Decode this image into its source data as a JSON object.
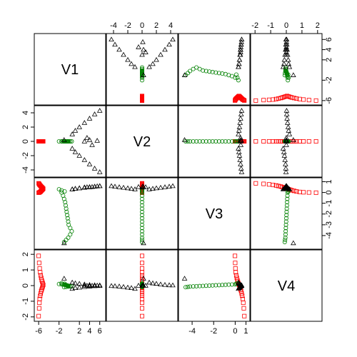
{
  "chart_data": {
    "type": "scatter",
    "subtype": "pairs-matrix",
    "variables": [
      "V1",
      "V2",
      "V3",
      "V4"
    ],
    "ranges": {
      "V1": [
        -6.3,
        6.6
      ],
      "V2": [
        -4.6,
        4.6
      ],
      "V3": [
        -5.0,
        1.1
      ],
      "V4": [
        -2.1,
        2.1
      ]
    },
    "axis_ticks": {
      "V1": [
        -6,
        -2,
        2,
        4,
        6
      ],
      "V2": [
        -4,
        -2,
        0,
        2,
        4
      ],
      "V3": [
        -4,
        -2,
        0,
        1
      ],
      "V4": [
        -2,
        -1,
        0,
        1,
        2
      ]
    },
    "axis_tick_labels": {
      "V1": [
        "-6",
        "-2",
        "2",
        "4",
        "6"
      ],
      "V2": [
        "-4",
        "-2",
        "0",
        "2",
        "4"
      ],
      "V3": [
        "-4",
        "-2",
        "0",
        "1"
      ],
      "V4": [
        "-2",
        "-1",
        "0",
        "1",
        "2"
      ]
    },
    "right_axis_ticks": {
      "V1": [
        -6,
        -2,
        2,
        4,
        6
      ],
      "V3": [
        -4,
        -3,
        -2,
        -1,
        0,
        1
      ]
    },
    "right_axis_tick_labels": {
      "V1": [
        "-6",
        "-2",
        "2",
        "4",
        "6"
      ],
      "V3": [
        "-4",
        "-3",
        "-2",
        "-1",
        "0",
        "1"
      ]
    },
    "groups": [
      {
        "marker": "square",
        "color": "#ff0000",
        "points": [
          [
            -6.0,
            0,
            0.85,
            -1.95
          ],
          [
            -5.9,
            0,
            0.8,
            -1.45
          ],
          [
            -5.85,
            0,
            0.75,
            -1.1
          ],
          [
            -5.8,
            0,
            0.7,
            -0.85
          ],
          [
            -5.7,
            0,
            0.65,
            -0.65
          ],
          [
            -5.6,
            0,
            0.6,
            -0.5
          ],
          [
            -5.5,
            0,
            0.55,
            -0.35
          ],
          [
            -5.4,
            0,
            0.5,
            -0.25
          ],
          [
            -5.3,
            0,
            0.45,
            -0.15
          ],
          [
            -5.2,
            0,
            0.4,
            -0.05
          ],
          [
            -5.1,
            0,
            0.35,
            0.05
          ],
          [
            -5.2,
            0,
            0.3,
            0.15
          ],
          [
            -5.3,
            0,
            0.25,
            0.25
          ],
          [
            -5.4,
            0,
            0.2,
            0.35
          ],
          [
            -5.5,
            0,
            0.15,
            0.5
          ],
          [
            -5.6,
            0,
            0.1,
            0.65
          ],
          [
            -5.7,
            0,
            0.05,
            0.85
          ],
          [
            -5.8,
            0,
            0.02,
            1.1
          ],
          [
            -5.9,
            0,
            0.0,
            1.45
          ],
          [
            -6.0,
            0,
            -0.02,
            1.9
          ]
        ]
      },
      {
        "marker": "circle",
        "color": "#008000",
        "points": [
          [
            -2.0,
            0,
            0.3,
            0.1
          ],
          [
            -1.5,
            0,
            0.0,
            0.08
          ],
          [
            -1.2,
            0,
            -0.3,
            0.07
          ],
          [
            -1.0,
            0,
            -0.6,
            0.06
          ],
          [
            -0.8,
            0,
            -0.9,
            0.05
          ],
          [
            -0.7,
            0,
            -1.2,
            0.04
          ],
          [
            -0.6,
            0,
            -1.5,
            0.03
          ],
          [
            -0.5,
            0,
            -1.8,
            0.02
          ],
          [
            -0.4,
            0,
            -2.1,
            0.01
          ],
          [
            -0.3,
            0,
            -2.4,
            0.0
          ],
          [
            -0.2,
            0,
            -2.7,
            -0.01
          ],
          [
            -0.1,
            0,
            -3.0,
            -0.02
          ],
          [
            0.2,
            0,
            -3.3,
            -0.03
          ],
          [
            0.5,
            0,
            -3.6,
            -0.04
          ],
          [
            0.2,
            0,
            -3.9,
            -0.05
          ],
          [
            -0.2,
            0,
            -4.2,
            -0.06
          ],
          [
            -0.6,
            0,
            -4.4,
            -0.08
          ],
          [
            -1.0,
            0,
            -4.6,
            -0.1
          ],
          [
            -1.5,
            0,
            0.2,
            0.15
          ],
          [
            -0.9,
            0,
            0.1,
            0.12
          ]
        ]
      },
      {
        "marker": "triangle",
        "color": "#000000",
        "points": [
          [
            -1.0,
            0.2,
            -4.7,
            0.45
          ],
          [
            0.6,
            1.0,
            0.3,
            0.2
          ],
          [
            1.2,
            1.5,
            0.35,
            0.15
          ],
          [
            2.0,
            2.0,
            0.4,
            0.12
          ],
          [
            3.0,
            2.6,
            0.45,
            0.08
          ],
          [
            4.0,
            3.2,
            0.5,
            0.05
          ],
          [
            5.0,
            3.8,
            0.55,
            0.03
          ],
          [
            6.0,
            4.3,
            0.6,
            0.02
          ],
          [
            0.6,
            -1.0,
            0.3,
            -0.2
          ],
          [
            1.2,
            -1.5,
            0.35,
            -0.15
          ],
          [
            2.0,
            -2.0,
            0.4,
            -0.12
          ],
          [
            3.0,
            -2.6,
            0.45,
            -0.08
          ],
          [
            4.0,
            -3.2,
            0.5,
            -0.05
          ],
          [
            5.0,
            -3.8,
            0.55,
            -0.03
          ],
          [
            6.0,
            -4.3,
            0.6,
            -0.02
          ],
          [
            3.5,
            0.5,
            0.5,
            0.0
          ],
          [
            4.5,
            -0.5,
            0.52,
            0.0
          ],
          [
            5.5,
            0.1,
            0.58,
            0.01
          ],
          [
            3.0,
            0.0,
            0.48,
            0.0
          ],
          [
            4.0,
            0.2,
            0.5,
            0.0
          ]
        ]
      }
    ]
  }
}
